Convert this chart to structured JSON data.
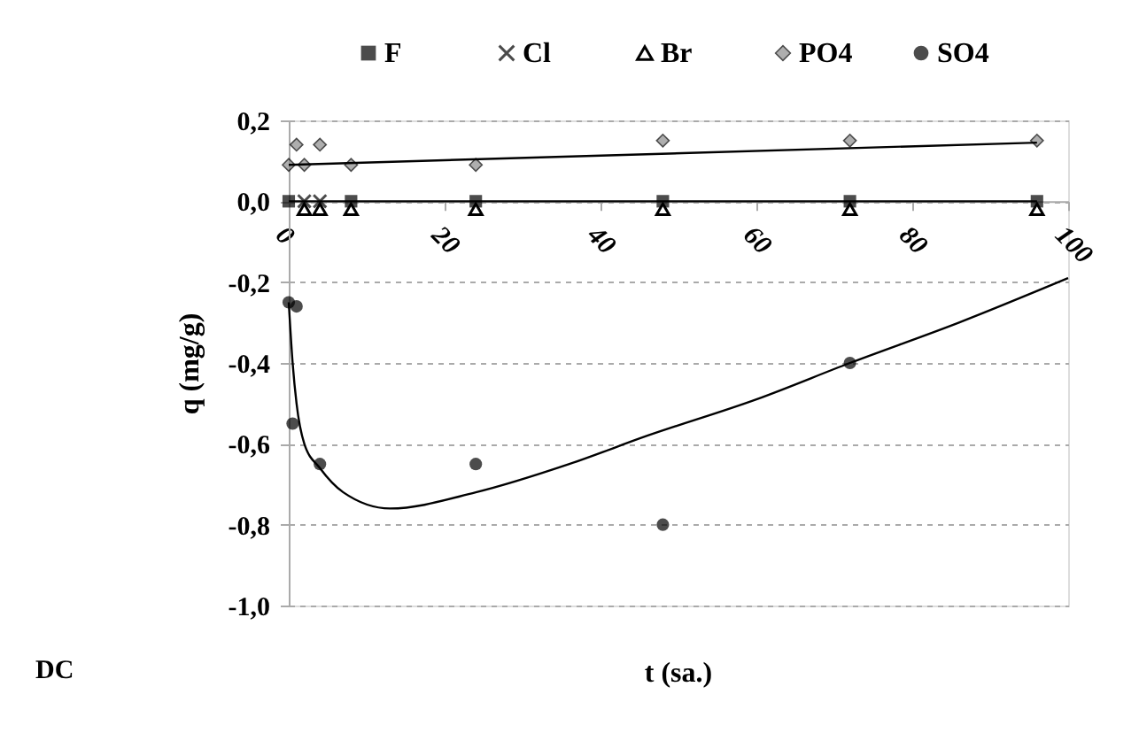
{
  "chart_data": {
    "type": "scatter",
    "xlabel": "t (sa.)",
    "ylabel": "q (mg/g)",
    "annotations": [
      "DC"
    ],
    "xlim": [
      0,
      100
    ],
    "xticks": [
      0,
      20,
      40,
      60,
      80,
      100
    ],
    "ylim": [
      -1.0,
      0.2
    ],
    "yticks": [
      {
        "value": -1.0,
        "label": "-1,0"
      },
      {
        "value": -0.8,
        "label": "-0,8"
      },
      {
        "value": -0.6,
        "label": "-0,6"
      },
      {
        "value": -0.4,
        "label": "-0,4"
      },
      {
        "value": -0.2,
        "label": "-0,2"
      },
      {
        "value": 0.0,
        "label": "0,0"
      },
      {
        "value": 0.2,
        "label": "0,2"
      }
    ],
    "grid": "y",
    "legend": "top",
    "series": [
      {
        "name": "F",
        "color": "#000000",
        "marker": "square",
        "x": [
          0,
          8,
          24,
          48,
          72,
          96
        ],
        "values": [
          0.0,
          0.0,
          0.0,
          0.0,
          0.0,
          0.0
        ]
      },
      {
        "name": "Cl",
        "color": "#000000",
        "marker": "cross",
        "x": [
          2,
          4
        ],
        "values": [
          0.0,
          0.0
        ]
      },
      {
        "name": "Br",
        "color": "#000000",
        "marker": "triangle",
        "x": [
          2,
          4,
          8,
          24,
          48,
          72,
          96
        ],
        "values": [
          -0.02,
          -0.02,
          -0.02,
          -0.02,
          -0.02,
          -0.02,
          -0.02
        ]
      },
      {
        "name": "PO4",
        "color": "#8c8c8c",
        "marker": "diamond",
        "x": [
          0,
          0.5,
          1,
          2,
          4,
          8,
          24,
          48,
          72,
          96
        ],
        "values": [
          0.09,
          null,
          0.14,
          0.09,
          0.14,
          0.09,
          0.09,
          0.15,
          0.15,
          0.15
        ]
      },
      {
        "name": "SO4",
        "color": "#000000",
        "marker": "circle",
        "x": [
          0,
          0.5,
          1,
          4,
          24,
          48,
          72
        ],
        "values": [
          -0.25,
          -0.55,
          -0.26,
          -0.65,
          -0.65,
          -0.8,
          -0.4
        ]
      },
      {
        "type": "line",
        "color": "#000000",
        "x": [
          0,
          96
        ],
        "values": [
          0.0,
          0.0
        ]
      },
      {
        "type": "line",
        "color": "#000000",
        "x": [
          0,
          96
        ],
        "values": [
          0.09,
          0.145
        ]
      },
      {
        "type": "line",
        "color": "#000000",
        "x": [
          0,
          0.5,
          1,
          2,
          4,
          7,
          13,
          24,
          36,
          46,
          60,
          72,
          86,
          100
        ],
        "values": [
          -0.25,
          -0.4,
          -0.5,
          -0.6,
          -0.66,
          -0.72,
          -0.76,
          -0.72,
          -0.65,
          -0.58,
          -0.49,
          -0.4,
          -0.3,
          -0.19
        ]
      }
    ]
  }
}
